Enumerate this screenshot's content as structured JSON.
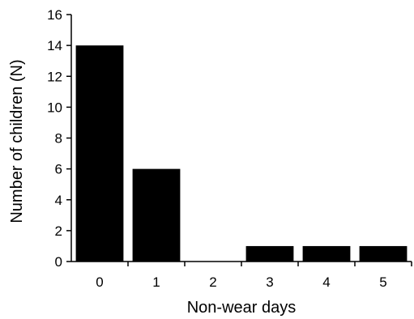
{
  "chart_data": {
    "type": "bar",
    "title": "",
    "xlabel": "Non-wear days",
    "ylabel": "Number of children (N)",
    "categories": [
      "0",
      "1",
      "2",
      "3",
      "4",
      "5"
    ],
    "values": [
      14,
      6,
      0,
      1,
      1,
      1
    ],
    "ylim": [
      0,
      16
    ],
    "yticks": [
      0,
      2,
      4,
      6,
      8,
      10,
      12,
      14,
      16
    ],
    "ytick_labels": [
      "0",
      "2",
      "4",
      "6",
      "8",
      "10",
      "12",
      "14",
      "16"
    ],
    "grid": false,
    "legend": "none",
    "bar_color": "#000000"
  }
}
